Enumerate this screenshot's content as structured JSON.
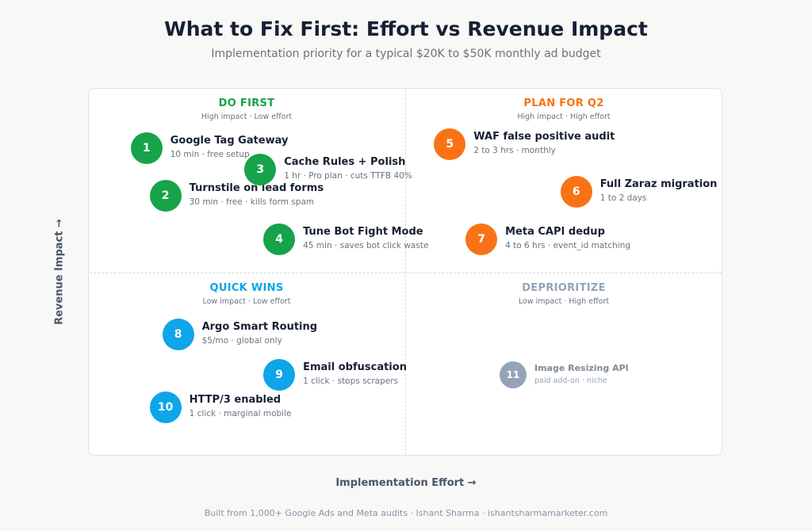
{
  "title": "What to Fix First: Effort vs Revenue Impact",
  "subtitle": "Implementation priority for a typical $20K to $50K monthly ad budget",
  "footer": "Built from 1,000+ Google Ads and Meta audits · Ishant Sharma · ishantsharmamarketer.com",
  "colors": {
    "do_first": "#16a34a",
    "plan": "#f97316",
    "quick": "#0ea5e9",
    "deprioritize": "#94a3b8"
  },
  "chart_data": {
    "type": "scatter",
    "title": "What to Fix First: Effort vs Revenue Impact",
    "subtitle": "Implementation priority for a typical $20K to $50K monthly ad budget",
    "xlabel": "Implementation Effort →",
    "ylabel": "Revenue Impact →",
    "grid": false,
    "quadrants": [
      {
        "key": "do_first",
        "title": "DO FIRST",
        "subtitle": "High impact · Low effort",
        "color": "#16a34a"
      },
      {
        "key": "plan",
        "title": "PLAN FOR Q2",
        "subtitle": "High impact · High effort",
        "color": "#f97316"
      },
      {
        "key": "quick",
        "title": "QUICK WINS",
        "subtitle": "Low impact · Low effort",
        "color": "#0ea5e9"
      },
      {
        "key": "deprioritize",
        "title": "DEPRIORITIZE",
        "subtitle": "Low impact · High effort",
        "color": "#94a3b8"
      }
    ],
    "items": [
      {
        "n": "1",
        "name": "Google Tag Gateway",
        "desc": "10 min · free setup",
        "quadrant": "do_first",
        "effort": 0.09,
        "impact": 0.84
      },
      {
        "n": "2",
        "name": "Turnstile on lead forms",
        "desc": "30 min · free · kills form spam",
        "quadrant": "do_first",
        "effort": 0.12,
        "impact": 0.71
      },
      {
        "n": "3",
        "name": "Cache Rules + Polish",
        "desc": "1 hr · Pro plan · cuts TTFB 40%",
        "quadrant": "do_first",
        "effort": 0.27,
        "impact": 0.78
      },
      {
        "n": "4",
        "name": "Tune Bot Fight Mode",
        "desc": "45 min · saves bot click waste",
        "quadrant": "do_first",
        "effort": 0.3,
        "impact": 0.59
      },
      {
        "n": "5",
        "name": "WAF false positive audit",
        "desc": "2 to 3 hrs · monthly",
        "quadrant": "plan",
        "effort": 0.57,
        "impact": 0.85
      },
      {
        "n": "6",
        "name": "Full Zaraz migration",
        "desc": "1 to 2 days",
        "quadrant": "plan",
        "effort": 0.77,
        "impact": 0.72
      },
      {
        "n": "7",
        "name": "Meta CAPI dedup",
        "desc": "4 to 6 hrs · event_id matching",
        "quadrant": "plan",
        "effort": 0.62,
        "impact": 0.59
      },
      {
        "n": "8",
        "name": "Argo Smart Routing",
        "desc": "$5/mo · global only",
        "quadrant": "quick",
        "effort": 0.14,
        "impact": 0.33
      },
      {
        "n": "9",
        "name": "Email obfuscation",
        "desc": "1 click · stops scrapers",
        "quadrant": "quick",
        "effort": 0.3,
        "impact": 0.22
      },
      {
        "n": "10",
        "name": "HTTP/3 enabled",
        "desc": "1 click · marginal mobile",
        "quadrant": "quick",
        "effort": 0.12,
        "impact": 0.13
      },
      {
        "n": "11",
        "name": "Image Resizing API",
        "desc": "paid add-on · niche",
        "quadrant": "deprioritize",
        "effort": 0.67,
        "impact": 0.22
      }
    ]
  }
}
